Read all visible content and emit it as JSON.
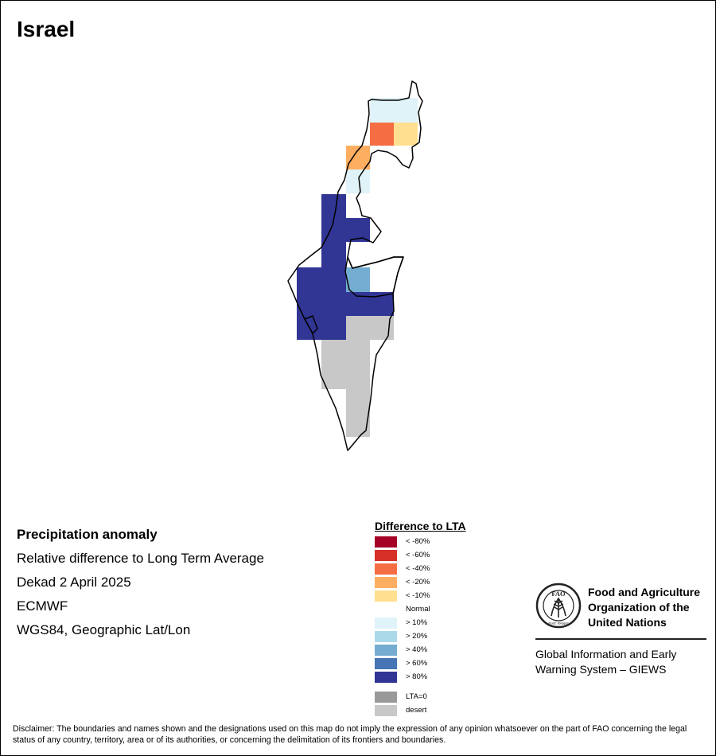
{
  "map": {
    "title": "Israel",
    "colors": {
      "grid_lt80": "#a50026",
      "grid_lt60": "#d73027",
      "grid_lt40": "#f46d43",
      "grid_lt20": "#fdae61",
      "grid_lt10": "#fee090",
      "grid_normal": "#ffffff",
      "grid_gt10": "#e0f3f8",
      "grid_gt20": "#abd9e9",
      "grid_gt40": "#74add1",
      "grid_gt60": "#4575b4",
      "grid_gt80": "#313695",
      "grid_lta0": "#999999",
      "grid_desert": "#c8c8c8"
    }
  },
  "info": {
    "heading": "Precipitation anomaly",
    "line1": "Relative difference to Long Term Average",
    "line2": "Dekad 2 April 2025",
    "line3": "ECMWF",
    "line4": "WGS84, Geographic Lat/Lon"
  },
  "legend": {
    "title": "Difference to LTA",
    "items": [
      {
        "label": "< -80%",
        "color": "#a50026"
      },
      {
        "label": "< -60%",
        "color": "#d73027"
      },
      {
        "label": "< -40%",
        "color": "#f46d43"
      },
      {
        "label": "< -20%",
        "color": "#fdae61"
      },
      {
        "label": "< -10%",
        "color": "#fee090"
      },
      {
        "label": "Normal",
        "color": "#ffffff"
      },
      {
        "label": "> 10%",
        "color": "#e0f3f8"
      },
      {
        "label": "> 20%",
        "color": "#abd9e9"
      },
      {
        "label": "> 40%",
        "color": "#74add1"
      },
      {
        "label": "> 60%",
        "color": "#4575b4"
      },
      {
        "label": "> 80%",
        "color": "#313695"
      }
    ],
    "extra": [
      {
        "label": "LTA=0",
        "color": "#999999"
      },
      {
        "label": "desert",
        "color": "#c8c8c8"
      }
    ]
  },
  "fao": {
    "name_line1": "Food and Agriculture",
    "name_line2": "Organization of the",
    "name_line3": "United Nations",
    "logo_letters": "FAO",
    "logo_motto": "FIAT PANIS",
    "giews_line1": "Global Information and Early",
    "giews_line2": "Warning System – GIEWS"
  },
  "disclaimer": "Disclaimer: The boundaries and names shown and the designations used on this map do not imply the expression of any opinion whatsoever on the part of FAO concerning the legal status of any country, territory, area or of its authorities, or concerning the delimitation of its frontiers and boundaries."
}
